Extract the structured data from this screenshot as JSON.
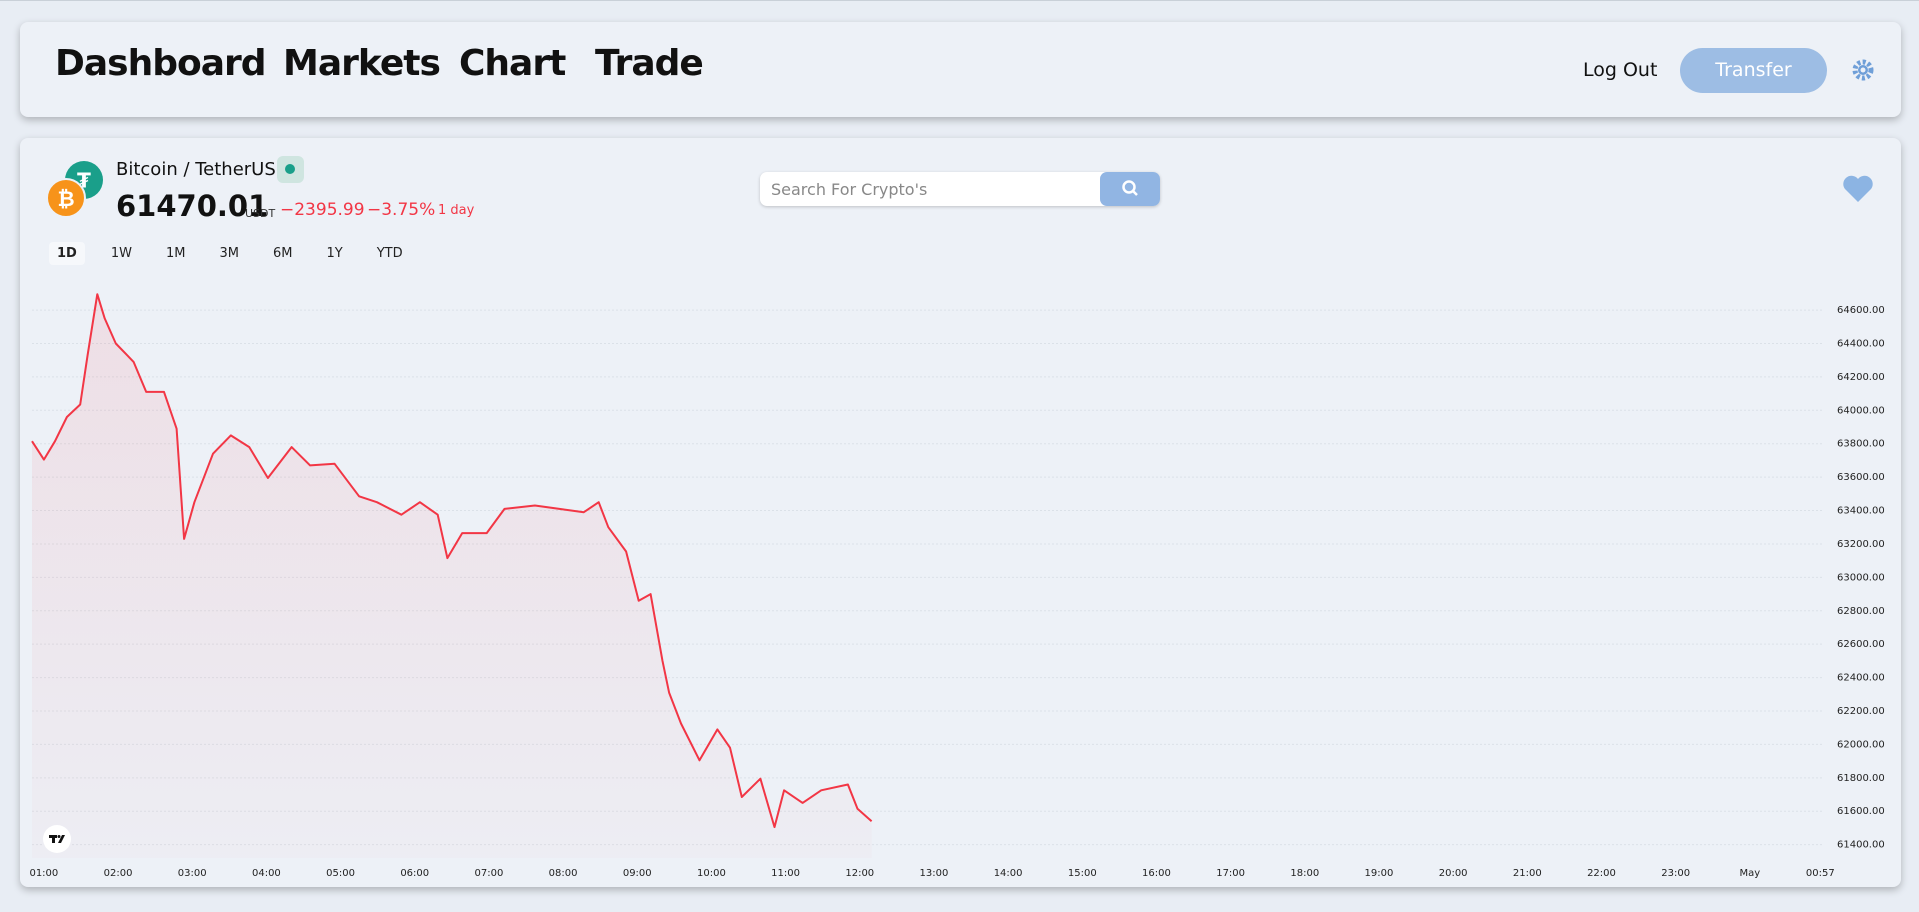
{
  "nav": {
    "links": [
      "Dashboard",
      "Markets",
      "Chart",
      "Trade"
    ],
    "logout": "Log Out",
    "transfer": "Transfer"
  },
  "ticker": {
    "quote_symbol": "₮",
    "base_symbol": "₿",
    "pair": "Bitcoin / TetherUS",
    "price": "61470.01",
    "unit": "USDT",
    "change": "−2395.99",
    "change_pct": "−3.75%",
    "period": "1 day"
  },
  "search": {
    "placeholder": "Search For Crypto's"
  },
  "ranges": [
    "1D",
    "1W",
    "1M",
    "3M",
    "6M",
    "1Y",
    "YTD"
  ],
  "chart_data": {
    "type": "line",
    "color": "#f23645",
    "grid": true,
    "xlim": [
      0.84,
      25.0
    ],
    "ylim": [
      61320,
      64780
    ],
    "xticks": [
      {
        "value": 1,
        "label": "01:00"
      },
      {
        "value": 2,
        "label": "02:00"
      },
      {
        "value": 3,
        "label": "03:00"
      },
      {
        "value": 4,
        "label": "04:00"
      },
      {
        "value": 5,
        "label": "05:00"
      },
      {
        "value": 6,
        "label": "06:00"
      },
      {
        "value": 7,
        "label": "07:00"
      },
      {
        "value": 8,
        "label": "08:00"
      },
      {
        "value": 9,
        "label": "09:00"
      },
      {
        "value": 10,
        "label": "10:00"
      },
      {
        "value": 11,
        "label": "11:00"
      },
      {
        "value": 12,
        "label": "12:00"
      },
      {
        "value": 13,
        "label": "13:00"
      },
      {
        "value": 14,
        "label": "14:00"
      },
      {
        "value": 15,
        "label": "15:00"
      },
      {
        "value": 16,
        "label": "16:00"
      },
      {
        "value": 17,
        "label": "17:00"
      },
      {
        "value": 18,
        "label": "18:00"
      },
      {
        "value": 19,
        "label": "19:00"
      },
      {
        "value": 20,
        "label": "20:00"
      },
      {
        "value": 21,
        "label": "21:00"
      },
      {
        "value": 22,
        "label": "22:00"
      },
      {
        "value": 23,
        "label": "23:00"
      },
      {
        "value": 24,
        "label": "May"
      },
      {
        "value": 24.95,
        "label": "00:57"
      }
    ],
    "yticks": [
      {
        "value": 61400,
        "label": "61400.00"
      },
      {
        "value": 61600,
        "label": "61600.00"
      },
      {
        "value": 61800,
        "label": "61800.00"
      },
      {
        "value": 62000,
        "label": "62000.00"
      },
      {
        "value": 62200,
        "label": "62200.00"
      },
      {
        "value": 62400,
        "label": "62400.00"
      },
      {
        "value": 62600,
        "label": "62600.00"
      },
      {
        "value": 62800,
        "label": "62800.00"
      },
      {
        "value": 63000,
        "label": "63000.00"
      },
      {
        "value": 63200,
        "label": "63200.00"
      },
      {
        "value": 63400,
        "label": "63400.00"
      },
      {
        "value": 63600,
        "label": "63600.00"
      },
      {
        "value": 63800,
        "label": "63800.00"
      },
      {
        "value": 64000,
        "label": "64000.00"
      },
      {
        "value": 64200,
        "label": "64200.00"
      },
      {
        "value": 64400,
        "label": "64400.00"
      },
      {
        "value": 64600,
        "label": "64600.00"
      }
    ],
    "x": [
      0.84,
      1.0,
      1.15,
      1.31,
      1.49,
      1.59,
      1.72,
      1.82,
      1.97,
      2.21,
      2.38,
      2.62,
      2.79,
      2.89,
      3.03,
      3.28,
      3.52,
      3.77,
      4.02,
      4.34,
      4.59,
      4.92,
      5.25,
      5.49,
      5.82,
      6.07,
      6.31,
      6.44,
      6.64,
      6.97,
      7.21,
      7.62,
      7.95,
      8.28,
      8.48,
      8.61,
      8.85,
      9.02,
      9.18,
      9.34,
      9.43,
      9.59,
      9.84,
      10.08,
      10.25,
      10.41,
      10.66,
      10.85,
      10.98,
      11.23,
      11.48,
      11.84,
      11.97,
      12.16
    ],
    "values": [
      63815,
      63705,
      63815,
      63960,
      64035,
      64330,
      64695,
      64550,
      64400,
      64290,
      64110,
      64110,
      63890,
      63230,
      63450,
      63740,
      63850,
      63780,
      63595,
      63780,
      63670,
      63680,
      63485,
      63450,
      63375,
      63450,
      63375,
      63115,
      63265,
      63265,
      63410,
      63430,
      63410,
      63390,
      63450,
      63300,
      63155,
      62860,
      62900,
      62500,
      62310,
      62125,
      61905,
      62090,
      61980,
      61685,
      61795,
      61505,
      61725,
      61650,
      61725,
      61760,
      61615,
      61540
    ]
  }
}
